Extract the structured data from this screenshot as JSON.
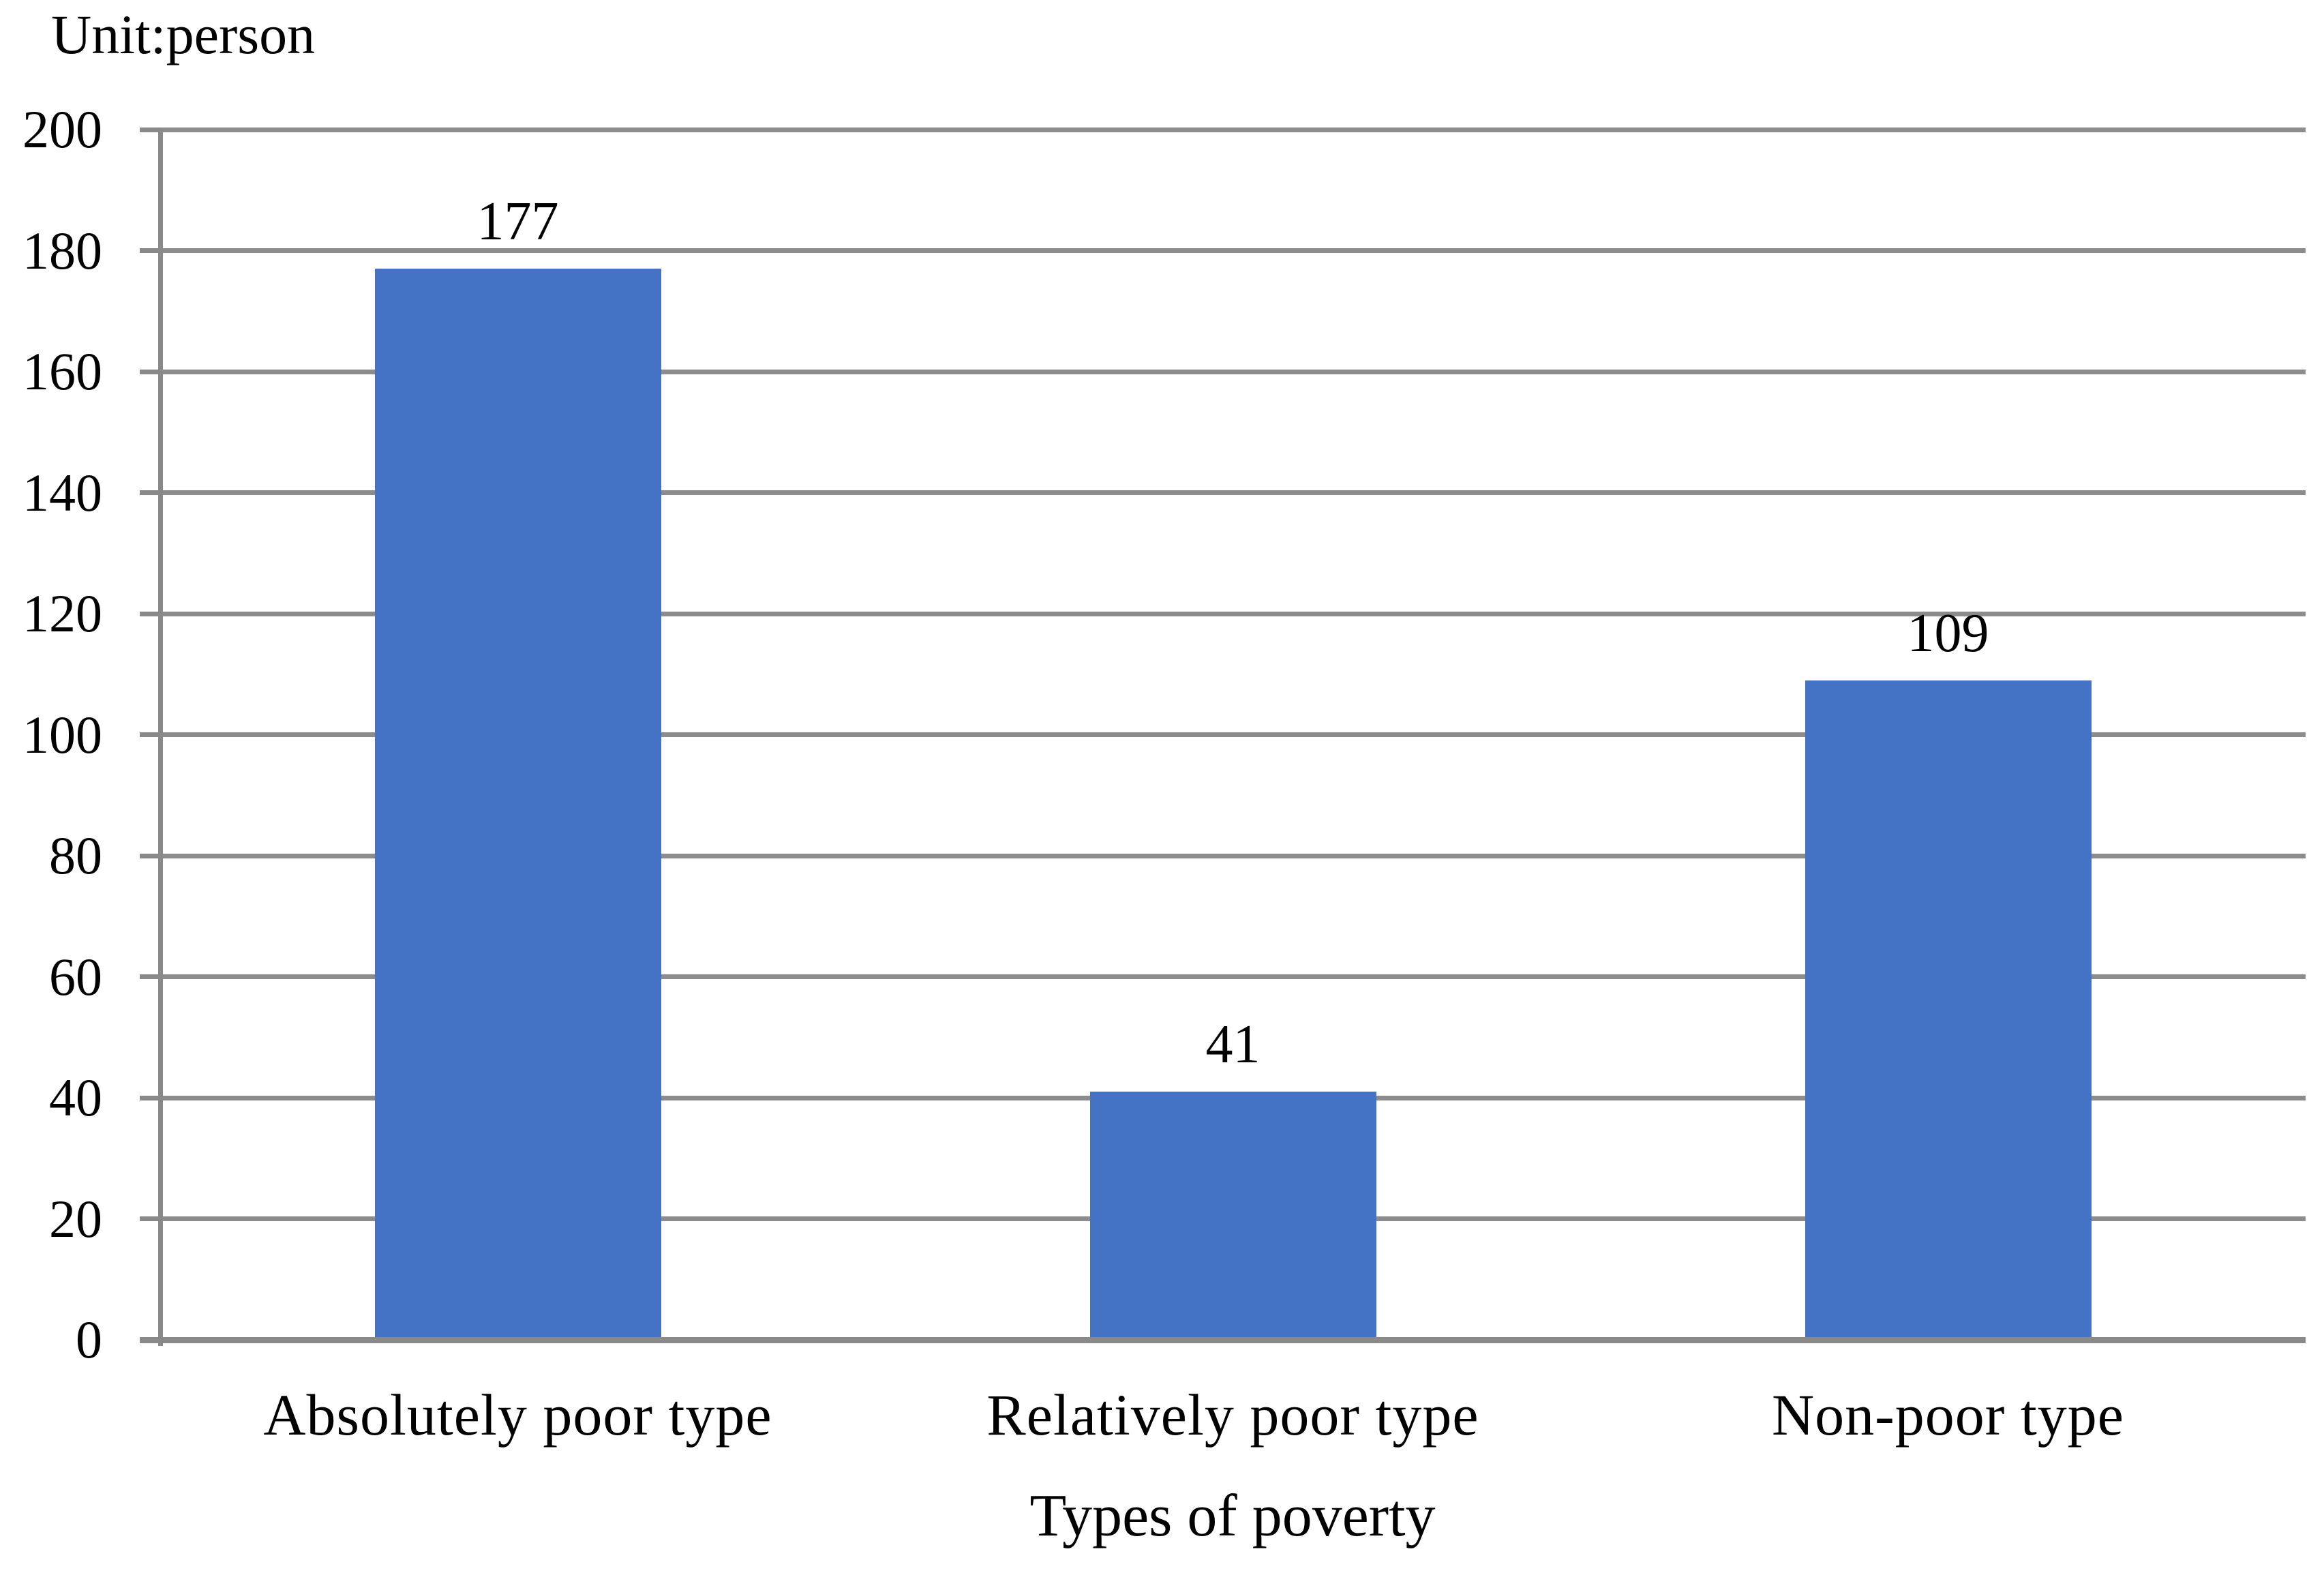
{
  "chart_data": {
    "type": "bar",
    "unit_label": "Unit:person",
    "categories": [
      "Absolutely poor type",
      "Relatively poor type",
      "Non-poor type"
    ],
    "values": [
      177,
      41,
      109
    ],
    "data_labels": [
      "177",
      "41",
      "109"
    ],
    "xlabel": "Types of poverty",
    "ylabel": "",
    "ylim": [
      0,
      200
    ],
    "ytick_step": 20,
    "yticks": [
      0,
      20,
      40,
      60,
      80,
      100,
      120,
      140,
      160,
      180,
      200
    ],
    "grid": "horizontal",
    "legend": "none",
    "colors": {
      "bar": "#4472C4",
      "gridline": "#8C8C8C",
      "axis": "#898989",
      "text": "#000000",
      "background": "#FFFFFF"
    }
  }
}
